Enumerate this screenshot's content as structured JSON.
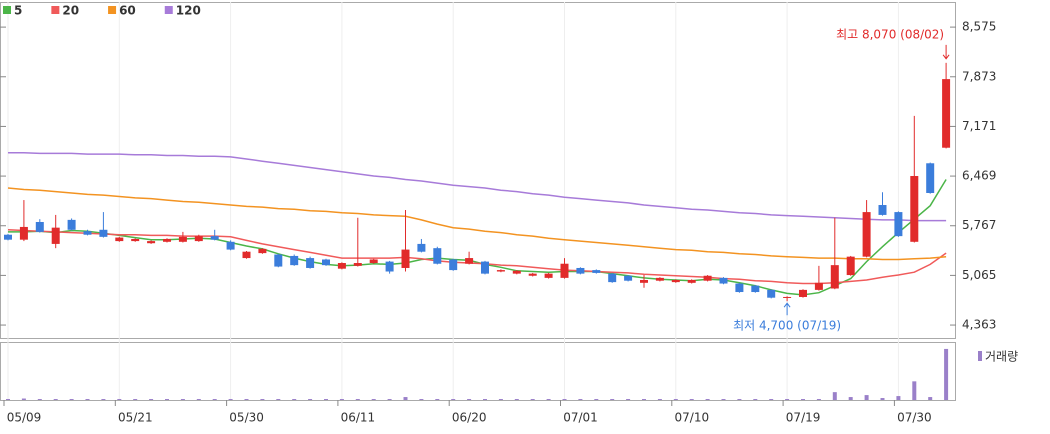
{
  "chart_data": {
    "type": "candlestick",
    "x": [
      "05/09",
      null,
      null,
      null,
      null,
      null,
      null,
      "05/21",
      null,
      null,
      null,
      null,
      null,
      null,
      "05/30",
      null,
      null,
      null,
      null,
      null,
      null,
      "06/11",
      null,
      null,
      null,
      null,
      null,
      null,
      "06/20",
      null,
      null,
      null,
      null,
      null,
      null,
      "07/01",
      null,
      null,
      null,
      null,
      null,
      null,
      "07/10",
      null,
      null,
      null,
      null,
      null,
      null,
      "07/19",
      null,
      null,
      null,
      null,
      null,
      null,
      "07/30",
      null,
      null,
      null
    ],
    "open": [
      5640,
      5570,
      5820,
      5510,
      5850,
      5690,
      5710,
      5550,
      5550,
      5520,
      5540,
      5540,
      5550,
      5620,
      5540,
      5310,
      5380,
      5360,
      5340,
      5310,
      5290,
      5160,
      5200,
      5240,
      5260,
      5170,
      5510,
      5450,
      5290,
      5230,
      5260,
      5120,
      5090,
      5060,
      5030,
      5030,
      5170,
      5140,
      5090,
      5060,
      4960,
      4990,
      4970,
      4960,
      4990,
      5030,
      4950,
      4920,
      4860,
      4750,
      4760,
      4860,
      4880,
      5070,
      5330,
      6060,
      5960,
      5540,
      6650,
      6870
    ],
    "high": [
      5650,
      6130,
      5860,
      5920,
      5870,
      5710,
      5960,
      5610,
      5590,
      5560,
      5590,
      5680,
      5640,
      5710,
      5560,
      5410,
      5450,
      5370,
      5360,
      5330,
      5300,
      5250,
      5880,
      5300,
      5270,
      5990,
      5580,
      5470,
      5300,
      5400,
      5270,
      5150,
      5140,
      5100,
      5100,
      5310,
      5180,
      5150,
      5100,
      5070,
      5070,
      5040,
      5010,
      5010,
      5070,
      5040,
      4960,
      4930,
      4870,
      4770,
      4870,
      5200,
      5880,
      5340,
      6130,
      6240,
      5970,
      7320,
      6660,
      8070
    ],
    "low": [
      5560,
      5550,
      5670,
      5450,
      5700,
      5630,
      5600,
      5540,
      5540,
      5510,
      5530,
      5530,
      5540,
      5560,
      5420,
      5300,
      5370,
      5180,
      5200,
      5160,
      5200,
      5150,
      5190,
      5230,
      5090,
      5120,
      5390,
      5220,
      5130,
      5220,
      5080,
      5110,
      5080,
      5050,
      5020,
      5020,
      5080,
      5090,
      4960,
      4980,
      4890,
      4980,
      4960,
      4950,
      4980,
      4940,
      4820,
      4820,
      4740,
      4700,
      4750,
      4850,
      4870,
      5060,
      5320,
      5910,
      5610,
      5530,
      6220,
      6860
    ],
    "close": [
      5570,
      5750,
      5680,
      5740,
      5710,
      5640,
      5610,
      5600,
      5580,
      5550,
      5580,
      5610,
      5620,
      5570,
      5430,
      5400,
      5440,
      5190,
      5210,
      5170,
      5210,
      5240,
      5240,
      5290,
      5120,
      5430,
      5400,
      5230,
      5140,
      5310,
      5090,
      5140,
      5130,
      5090,
      5090,
      5230,
      5090,
      5100,
      4970,
      4990,
      5000,
      5030,
      5000,
      5000,
      5060,
      4950,
      4830,
      4830,
      4750,
      4760,
      4860,
      4960,
      5210,
      5330,
      5960,
      5920,
      5620,
      6470,
      6230,
      7840
    ],
    "up_color": "#e12b2b",
    "down_color": "#3b7ddb",
    "series": [
      {
        "name": "5",
        "color": "#4bb548",
        "values": [
          5680,
          5680,
          5690,
          5670,
          5700,
          5690,
          5660,
          5630,
          5600,
          5570,
          5570,
          5580,
          5590,
          5580,
          5530,
          5480,
          5440,
          5370,
          5310,
          5260,
          5220,
          5200,
          5210,
          5230,
          5220,
          5240,
          5290,
          5310,
          5290,
          5280,
          5220,
          5180,
          5130,
          5120,
          5110,
          5120,
          5120,
          5120,
          5090,
          5060,
          5030,
          5010,
          5000,
          4990,
          5010,
          5000,
          4960,
          4920,
          4860,
          4810,
          4790,
          4820,
          4920,
          5020,
          5260,
          5470,
          5670,
          5860,
          6050,
          6420
        ]
      },
      {
        "name": "20",
        "color": "#f05a5a",
        "values": [
          5710,
          5700,
          5690,
          5680,
          5670,
          5660,
          5650,
          5640,
          5640,
          5630,
          5630,
          5620,
          5620,
          5620,
          5610,
          5560,
          5510,
          5470,
          5430,
          5390,
          5350,
          5310,
          5310,
          5310,
          5310,
          5320,
          5300,
          5270,
          5250,
          5240,
          5230,
          5210,
          5200,
          5180,
          5160,
          5140,
          5130,
          5120,
          5110,
          5100,
          5080,
          5070,
          5060,
          5050,
          5040,
          5020,
          5010,
          4990,
          4980,
          4960,
          4950,
          4950,
          4960,
          4980,
          5000,
          5040,
          5070,
          5110,
          5220,
          5380
        ]
      },
      {
        "name": "60",
        "color": "#f39321",
        "values": [
          6300,
          6280,
          6270,
          6250,
          6230,
          6210,
          6200,
          6180,
          6160,
          6150,
          6130,
          6110,
          6100,
          6080,
          6060,
          6040,
          6030,
          6010,
          6000,
          5980,
          5970,
          5950,
          5940,
          5920,
          5910,
          5900,
          5850,
          5790,
          5740,
          5720,
          5690,
          5670,
          5640,
          5620,
          5590,
          5570,
          5550,
          5530,
          5510,
          5490,
          5470,
          5450,
          5430,
          5420,
          5400,
          5390,
          5370,
          5360,
          5340,
          5330,
          5320,
          5310,
          5310,
          5300,
          5300,
          5290,
          5290,
          5300,
          5310,
          5330
        ]
      },
      {
        "name": "120",
        "color": "#a77bd9",
        "values": [
          6800,
          6800,
          6790,
          6790,
          6790,
          6780,
          6780,
          6780,
          6770,
          6770,
          6760,
          6760,
          6750,
          6750,
          6740,
          6710,
          6680,
          6650,
          6620,
          6590,
          6560,
          6530,
          6500,
          6470,
          6450,
          6420,
          6400,
          6370,
          6340,
          6320,
          6300,
          6270,
          6250,
          6220,
          6200,
          6170,
          6150,
          6130,
          6110,
          6090,
          6060,
          6040,
          6020,
          6000,
          5990,
          5970,
          5950,
          5940,
          5920,
          5910,
          5900,
          5890,
          5880,
          5870,
          5860,
          5850,
          5850,
          5840,
          5840,
          5840
        ]
      }
    ],
    "volume": {
      "name": "거래량",
      "color": "#9a80c9",
      "ylim": [
        0,
        56
      ],
      "values": [
        1,
        1.5,
        1,
        1,
        1,
        1,
        1,
        1,
        1,
        1,
        1,
        1,
        1,
        1,
        1,
        1,
        1,
        1,
        1,
        1,
        1,
        1,
        1,
        1,
        1,
        3,
        1,
        1,
        1,
        1,
        1,
        1,
        1,
        1,
        1,
        1,
        1,
        1,
        1,
        1,
        1,
        1,
        1,
        1,
        1,
        1,
        1,
        1,
        1,
        1,
        1,
        1,
        8,
        3,
        5,
        2,
        4,
        19,
        3,
        52
      ]
    },
    "ylim": [
      4180,
      8930
    ],
    "yticks": [
      {
        "value": 4363,
        "label": "4,363"
      },
      {
        "value": 5065,
        "label": "5,065"
      },
      {
        "value": 5767,
        "label": "5,767"
      },
      {
        "value": 6469,
        "label": "6,469"
      },
      {
        "value": 7171,
        "label": "7,171"
      },
      {
        "value": 7873,
        "label": "7,873"
      },
      {
        "value": 8575,
        "label": "8,575"
      }
    ],
    "annotations": [
      {
        "text": "최고 8,070 (08/02)",
        "color": "#e12b2b"
      },
      {
        "text": "최저 4,700 (07/19)",
        "color": "#3b7ddb"
      }
    ]
  }
}
